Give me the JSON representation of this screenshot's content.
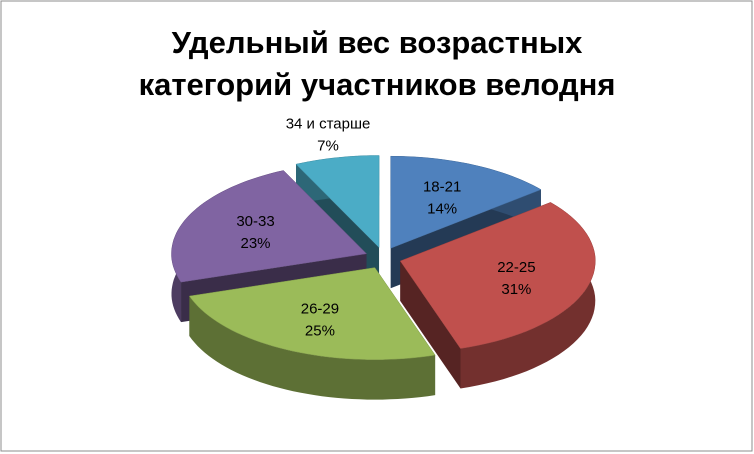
{
  "chart_data": {
    "type": "pie3d",
    "title": "Удельный вес возрастных категорий участников велодня",
    "categories": [
      "18-21",
      "22-25",
      "26-29",
      "30-33",
      "34 и старше"
    ],
    "values": [
      14,
      31,
      25,
      23,
      7
    ],
    "value_labels": [
      "14%",
      "31%",
      "25%",
      "23%",
      "7%"
    ],
    "colors": [
      "#4f81bd",
      "#c0504d",
      "#9bbb59",
      "#8064a2",
      "#4bacc6"
    ]
  }
}
